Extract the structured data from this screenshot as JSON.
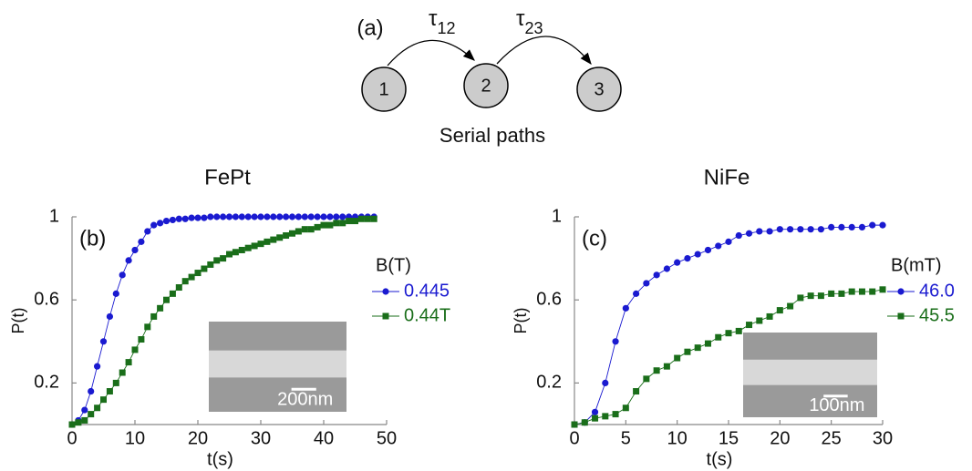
{
  "diagram": {
    "label": "(a)",
    "nodes": [
      "1",
      "2",
      "3"
    ],
    "edges": [
      {
        "symbol": "τ",
        "subscript": "12"
      },
      {
        "symbol": "τ",
        "subscript": "23"
      }
    ],
    "caption": "Serial paths"
  },
  "chart_data": [
    {
      "type": "line",
      "title": "FePt",
      "panel_label": "(b)",
      "x_label": "t(s)",
      "y_label": "P(t)",
      "xlim": [
        0,
        50
      ],
      "xticks": [
        0,
        10,
        20,
        30,
        40,
        50
      ],
      "ylim": [
        0,
        1
      ],
      "yticks": [
        0.2,
        0.6,
        1
      ],
      "legend_title": "B(T)",
      "inset_label": "200nm",
      "x": [
        0,
        1,
        2,
        3,
        4,
        5,
        6,
        7,
        8,
        9,
        10,
        11,
        12,
        13,
        14,
        15,
        16,
        17,
        18,
        19,
        20,
        21,
        22,
        23,
        24,
        25,
        26,
        27,
        28,
        29,
        30,
        31,
        32,
        33,
        34,
        35,
        36,
        37,
        38,
        39,
        40,
        41,
        42,
        43,
        44,
        45,
        46,
        47,
        48
      ],
      "series": [
        {
          "name": "0.445",
          "color": "#1a1ad0",
          "marker": "circle",
          "values": [
            0,
            0.02,
            0.07,
            0.16,
            0.28,
            0.4,
            0.52,
            0.63,
            0.72,
            0.79,
            0.84,
            0.88,
            0.93,
            0.96,
            0.97,
            0.98,
            0.985,
            0.99,
            0.99,
            0.995,
            0.995,
            0.995,
            1,
            1,
            1,
            1,
            1,
            1,
            1,
            1,
            1,
            1,
            1,
            1,
            1,
            1,
            1,
            1,
            1,
            1,
            1,
            1,
            1,
            1,
            1,
            1,
            1,
            1,
            1
          ]
        },
        {
          "name": "0.44T",
          "color": "#1a6e1a",
          "marker": "square",
          "values": [
            0,
            0.01,
            0.02,
            0.05,
            0.08,
            0.12,
            0.16,
            0.2,
            0.25,
            0.3,
            0.36,
            0.41,
            0.47,
            0.52,
            0.56,
            0.6,
            0.63,
            0.66,
            0.69,
            0.71,
            0.73,
            0.75,
            0.77,
            0.79,
            0.8,
            0.82,
            0.83,
            0.84,
            0.85,
            0.86,
            0.87,
            0.88,
            0.89,
            0.9,
            0.91,
            0.92,
            0.93,
            0.94,
            0.94,
            0.95,
            0.96,
            0.96,
            0.97,
            0.97,
            0.98,
            0.98,
            0.99,
            0.99,
            0.99
          ]
        }
      ]
    },
    {
      "type": "line",
      "title": "NiFe",
      "panel_label": "(c)",
      "x_label": "t(s)",
      "y_label": "P(t)",
      "xlim": [
        0,
        30
      ],
      "xticks": [
        0,
        5,
        10,
        15,
        20,
        25,
        30
      ],
      "ylim": [
        0,
        1
      ],
      "yticks": [
        0.2,
        0.6,
        1
      ],
      "legend_title": "B(mT)",
      "inset_label": "100nm",
      "x": [
        0,
        1,
        2,
        3,
        4,
        5,
        6,
        7,
        8,
        9,
        10,
        11,
        12,
        13,
        14,
        15,
        16,
        17,
        18,
        19,
        20,
        21,
        22,
        23,
        24,
        25,
        26,
        27,
        28,
        29,
        30
      ],
      "series": [
        {
          "name": "46.0",
          "color": "#1a1ad0",
          "marker": "circle",
          "values": [
            0,
            0.01,
            0.06,
            0.2,
            0.4,
            0.56,
            0.63,
            0.68,
            0.72,
            0.75,
            0.78,
            0.8,
            0.82,
            0.84,
            0.86,
            0.88,
            0.91,
            0.92,
            0.93,
            0.93,
            0.94,
            0.94,
            0.94,
            0.94,
            0.94,
            0.95,
            0.95,
            0.95,
            0.95,
            0.96,
            0.96
          ]
        },
        {
          "name": "45.5",
          "color": "#1a6e1a",
          "marker": "square",
          "values": [
            0,
            0.01,
            0.03,
            0.04,
            0.05,
            0.08,
            0.16,
            0.22,
            0.26,
            0.28,
            0.32,
            0.35,
            0.37,
            0.39,
            0.42,
            0.44,
            0.45,
            0.48,
            0.5,
            0.52,
            0.55,
            0.57,
            0.61,
            0.62,
            0.62,
            0.63,
            0.63,
            0.64,
            0.64,
            0.64,
            0.65
          ]
        }
      ]
    }
  ]
}
